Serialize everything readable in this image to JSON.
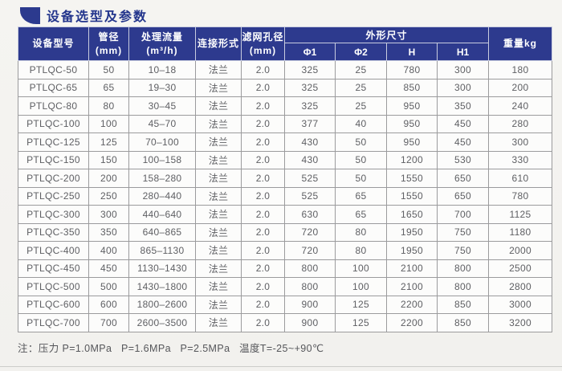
{
  "page": {
    "title": "设备选型及参数",
    "note": "注：压力 P=1.0MPa   P=1.6MPa   P=2.5MPa   温度T=-25~+90℃"
  },
  "colors": {
    "header_bg": "#2d3a8e",
    "title_text": "#23358c",
    "body_text": "#5e5f63"
  },
  "icons": {
    "section_marker": "quarter-round-corner-square"
  },
  "table": {
    "headers": {
      "model": "设备型号",
      "pipe_diameter": "管径(mm)",
      "flow_line1": "处理流量",
      "flow_line2": "(m³/h)",
      "connection": "连接形式",
      "mesh_line1": "滤网孔径",
      "mesh_line2": "(mm)",
      "dimensions_group": "外形尺寸",
      "phi1": "Φ1",
      "phi2": "Φ2",
      "h": "H",
      "h1": "H1",
      "weight": "重量kg"
    },
    "rows": [
      [
        "PTLQC-50",
        "50",
        "10–18",
        "法兰",
        "2.0",
        "325",
        "25",
        "780",
        "300",
        "180"
      ],
      [
        "PTLQC-65",
        "65",
        "19–30",
        "法兰",
        "2.0",
        "325",
        "25",
        "850",
        "300",
        "200"
      ],
      [
        "PTLQC-80",
        "80",
        "30–45",
        "法兰",
        "2.0",
        "325",
        "25",
        "950",
        "350",
        "240"
      ],
      [
        "PTLQC-100",
        "100",
        "45–70",
        "法兰",
        "2.0",
        "377",
        "40",
        "950",
        "450",
        "280"
      ],
      [
        "PTLQC-125",
        "125",
        "70–100",
        "法兰",
        "2.0",
        "430",
        "50",
        "950",
        "450",
        "300"
      ],
      [
        "PTLQC-150",
        "150",
        "100–158",
        "法兰",
        "2.0",
        "430",
        "50",
        "1200",
        "530",
        "330"
      ],
      [
        "PTLQC-200",
        "200",
        "158–280",
        "法兰",
        "2.0",
        "525",
        "50",
        "1550",
        "650",
        "610"
      ],
      [
        "PTLQC-250",
        "250",
        "280–440",
        "法兰",
        "2.0",
        "525",
        "65",
        "1550",
        "650",
        "780"
      ],
      [
        "PTLQC-300",
        "300",
        "440–640",
        "法兰",
        "2.0",
        "630",
        "65",
        "1650",
        "700",
        "1125"
      ],
      [
        "PTLQC-350",
        "350",
        "640–865",
        "法兰",
        "2.0",
        "720",
        "80",
        "1950",
        "750",
        "1180"
      ],
      [
        "PTLQC-400",
        "400",
        "865–1130",
        "法兰",
        "2.0",
        "720",
        "80",
        "1950",
        "750",
        "2000"
      ],
      [
        "PTLQC-450",
        "450",
        "1130–1430",
        "法兰",
        "2.0",
        "800",
        "100",
        "2100",
        "800",
        "2500"
      ],
      [
        "PTLQC-500",
        "500",
        "1430–1800",
        "法兰",
        "2.0",
        "800",
        "100",
        "2100",
        "800",
        "2800"
      ],
      [
        "PTLQC-600",
        "600",
        "1800–2600",
        "法兰",
        "2.0",
        "900",
        "125",
        "2200",
        "850",
        "3000"
      ],
      [
        "PTLQC-700",
        "700",
        "2600–3500",
        "法兰",
        "2.0",
        "900",
        "125",
        "2200",
        "850",
        "3200"
      ]
    ]
  }
}
